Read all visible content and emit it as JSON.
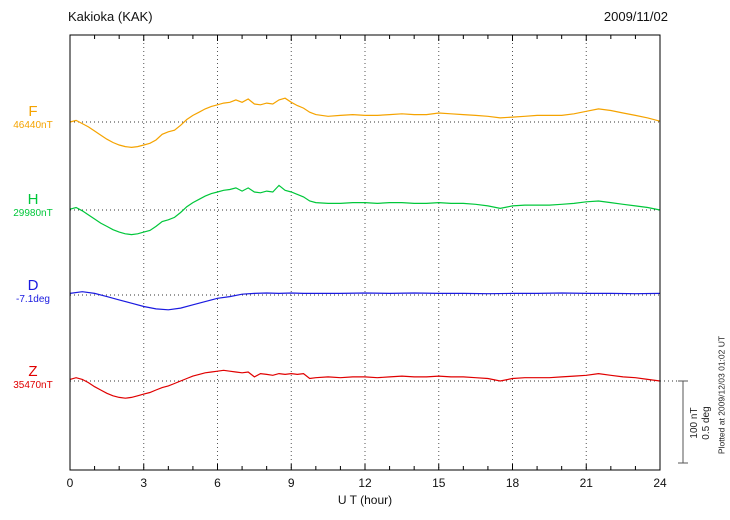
{
  "header": {
    "title": "Kakioka (KAK)",
    "date": "2009/11/02"
  },
  "xaxis": {
    "label": "U T (hour)",
    "ticks": [
      0,
      3,
      6,
      9,
      12,
      15,
      18,
      21,
      24
    ],
    "range": [
      0,
      24
    ]
  },
  "scale_bar": {
    "lines": [
      "100 nT",
      "0.5 deg"
    ],
    "length_nT": 100,
    "length_deg": 0.5
  },
  "footnote": "Plotted at 2009/12/03 01:02 UT",
  "colors": {
    "F": "#f5a300",
    "H": "#00c73a",
    "D": "#1a1ae0",
    "Z": "#e00000",
    "frame": "#000000",
    "grid": "#555555"
  },
  "chart_data": {
    "type": "line",
    "title": "Kakioka (KAK) magnetogram 2009/11/02",
    "xlabel": "U T (hour)",
    "xlim": [
      0,
      24
    ],
    "grid": "dotted vertical every 3 h, dotted horizontal baseline per trace",
    "legend": "left-side trace labels F/H/D/Z with baseline values",
    "series": [
      {
        "name": "F",
        "unit": "nT",
        "base_label": "46440nT",
        "base_value": 46440,
        "color": "#f5a300",
        "points": [
          [
            0,
            0
          ],
          [
            0.25,
            2
          ],
          [
            0.5,
            -2
          ],
          [
            0.75,
            -6
          ],
          [
            1,
            -11
          ],
          [
            1.25,
            -16
          ],
          [
            1.5,
            -21
          ],
          [
            1.75,
            -25
          ],
          [
            2,
            -28
          ],
          [
            2.25,
            -30
          ],
          [
            2.5,
            -31
          ],
          [
            2.75,
            -30
          ],
          [
            3,
            -28
          ],
          [
            3.25,
            -26
          ],
          [
            3.5,
            -22
          ],
          [
            3.75,
            -15
          ],
          [
            4,
            -12
          ],
          [
            4.25,
            -10
          ],
          [
            4.5,
            -4
          ],
          [
            4.75,
            3
          ],
          [
            5,
            8
          ],
          [
            5.25,
            12
          ],
          [
            5.5,
            16
          ],
          [
            5.75,
            19
          ],
          [
            6,
            21
          ],
          [
            6.25,
            23
          ],
          [
            6.5,
            24
          ],
          [
            6.75,
            27
          ],
          [
            7,
            24
          ],
          [
            7.25,
            28
          ],
          [
            7.5,
            22
          ],
          [
            7.75,
            21
          ],
          [
            8,
            23
          ],
          [
            8.25,
            22
          ],
          [
            8.5,
            27
          ],
          [
            8.75,
            29
          ],
          [
            9,
            24
          ],
          [
            9.25,
            20
          ],
          [
            9.5,
            17
          ],
          [
            9.75,
            12
          ],
          [
            10,
            9
          ],
          [
            10.5,
            7
          ],
          [
            11,
            8
          ],
          [
            11.5,
            9
          ],
          [
            12,
            8
          ],
          [
            12.5,
            8
          ],
          [
            13,
            9
          ],
          [
            13.5,
            10
          ],
          [
            14,
            9
          ],
          [
            14.5,
            9
          ],
          [
            15,
            11
          ],
          [
            15.5,
            10
          ],
          [
            16,
            9
          ],
          [
            16.5,
            8
          ],
          [
            17,
            7
          ],
          [
            17.5,
            5
          ],
          [
            18,
            6
          ],
          [
            18.5,
            7
          ],
          [
            19,
            8
          ],
          [
            19.5,
            8
          ],
          [
            20,
            8
          ],
          [
            20.5,
            10
          ],
          [
            21,
            13
          ],
          [
            21.5,
            16
          ],
          [
            22,
            14
          ],
          [
            22.5,
            11
          ],
          [
            23,
            8
          ],
          [
            23.5,
            5
          ],
          [
            24,
            1
          ]
        ]
      },
      {
        "name": "H",
        "unit": "nT",
        "base_label": "29980nT",
        "base_value": 29980,
        "color": "#00c73a",
        "points": [
          [
            0,
            1
          ],
          [
            0.25,
            3
          ],
          [
            0.5,
            -1
          ],
          [
            0.75,
            -6
          ],
          [
            1,
            -11
          ],
          [
            1.25,
            -16
          ],
          [
            1.5,
            -20
          ],
          [
            1.75,
            -24
          ],
          [
            2,
            -27
          ],
          [
            2.25,
            -29
          ],
          [
            2.5,
            -30
          ],
          [
            2.75,
            -29
          ],
          [
            3,
            -27
          ],
          [
            3.25,
            -25
          ],
          [
            3.5,
            -20
          ],
          [
            3.75,
            -14
          ],
          [
            4,
            -12
          ],
          [
            4.25,
            -9
          ],
          [
            4.5,
            -3
          ],
          [
            4.75,
            4
          ],
          [
            5,
            9
          ],
          [
            5.25,
            13
          ],
          [
            5.5,
            17
          ],
          [
            5.75,
            20
          ],
          [
            6,
            22
          ],
          [
            6.25,
            24
          ],
          [
            6.5,
            25
          ],
          [
            6.75,
            27
          ],
          [
            7,
            23
          ],
          [
            7.25,
            27
          ],
          [
            7.5,
            22
          ],
          [
            7.75,
            21
          ],
          [
            8,
            23
          ],
          [
            8.25,
            22
          ],
          [
            8.5,
            30
          ],
          [
            8.75,
            24
          ],
          [
            9,
            22
          ],
          [
            9.25,
            19
          ],
          [
            9.5,
            16
          ],
          [
            9.75,
            11
          ],
          [
            10,
            9
          ],
          [
            10.5,
            8
          ],
          [
            11,
            8
          ],
          [
            11.5,
            9
          ],
          [
            12,
            9
          ],
          [
            12.5,
            8
          ],
          [
            13,
            9
          ],
          [
            13.5,
            9
          ],
          [
            14,
            8
          ],
          [
            14.5,
            8
          ],
          [
            15,
            9
          ],
          [
            15.5,
            8
          ],
          [
            16,
            8
          ],
          [
            16.5,
            7
          ],
          [
            17,
            5
          ],
          [
            17.5,
            2
          ],
          [
            18,
            5
          ],
          [
            18.5,
            6
          ],
          [
            19,
            6
          ],
          [
            19.5,
            6
          ],
          [
            20,
            7
          ],
          [
            20.5,
            8
          ],
          [
            21,
            10
          ],
          [
            21.5,
            11
          ],
          [
            22,
            9
          ],
          [
            22.5,
            7
          ],
          [
            23,
            5
          ],
          [
            23.5,
            3
          ],
          [
            24,
            0
          ]
        ]
      },
      {
        "name": "D",
        "unit": "deg",
        "base_label": "-7.1deg",
        "base_value": -7.1,
        "color": "#1a1ae0",
        "points": [
          [
            0,
            0.01
          ],
          [
            0.5,
            0.02
          ],
          [
            1,
            0.01
          ],
          [
            1.5,
            -0.01
          ],
          [
            2,
            -0.03
          ],
          [
            2.5,
            -0.05
          ],
          [
            3,
            -0.07
          ],
          [
            3.5,
            -0.085
          ],
          [
            4,
            -0.09
          ],
          [
            4.5,
            -0.08
          ],
          [
            5,
            -0.06
          ],
          [
            5.5,
            -0.04
          ],
          [
            6,
            -0.02
          ],
          [
            6.5,
            -0.01
          ],
          [
            7,
            0.005
          ],
          [
            7.5,
            0.01
          ],
          [
            8,
            0.012
          ],
          [
            8.5,
            0.01
          ],
          [
            9,
            0.012
          ],
          [
            9.5,
            0.01
          ],
          [
            10,
            0.01
          ],
          [
            11,
            0.01
          ],
          [
            12,
            0.012
          ],
          [
            13,
            0.01
          ],
          [
            14,
            0.012
          ],
          [
            15,
            0.01
          ],
          [
            16,
            0.01
          ],
          [
            17,
            0.008
          ],
          [
            18,
            0.01
          ],
          [
            19,
            0.01
          ],
          [
            20,
            0.012
          ],
          [
            21,
            0.01
          ],
          [
            22,
            0.01
          ],
          [
            23,
            0.008
          ],
          [
            24,
            0.01
          ]
        ]
      },
      {
        "name": "Z",
        "unit": "nT",
        "base_label": "35470nT",
        "base_value": 35470,
        "color": "#e00000",
        "points": [
          [
            0,
            2
          ],
          [
            0.25,
            4
          ],
          [
            0.5,
            2
          ],
          [
            0.75,
            -2
          ],
          [
            1,
            -7
          ],
          [
            1.25,
            -11
          ],
          [
            1.5,
            -15
          ],
          [
            1.75,
            -18
          ],
          [
            2,
            -20
          ],
          [
            2.25,
            -21
          ],
          [
            2.5,
            -20
          ],
          [
            2.75,
            -18
          ],
          [
            3,
            -16
          ],
          [
            3.25,
            -14
          ],
          [
            3.5,
            -11
          ],
          [
            3.75,
            -8
          ],
          [
            4,
            -6
          ],
          [
            4.25,
            -3
          ],
          [
            4.5,
            0
          ],
          [
            4.75,
            3
          ],
          [
            5,
            6
          ],
          [
            5.25,
            8
          ],
          [
            5.5,
            10
          ],
          [
            5.75,
            11
          ],
          [
            6,
            12
          ],
          [
            6.25,
            13
          ],
          [
            6.5,
            12
          ],
          [
            6.75,
            11
          ],
          [
            7,
            10
          ],
          [
            7.25,
            11
          ],
          [
            7.5,
            5
          ],
          [
            7.75,
            9
          ],
          [
            8,
            8
          ],
          [
            8.25,
            7
          ],
          [
            8.5,
            9
          ],
          [
            8.75,
            8
          ],
          [
            9,
            9
          ],
          [
            9.25,
            8
          ],
          [
            9.5,
            9
          ],
          [
            9.75,
            3
          ],
          [
            10,
            4
          ],
          [
            10.5,
            5
          ],
          [
            11,
            4
          ],
          [
            11.5,
            5
          ],
          [
            12,
            5
          ],
          [
            12.5,
            4
          ],
          [
            13,
            5
          ],
          [
            13.5,
            6
          ],
          [
            14,
            5
          ],
          [
            14.5,
            5
          ],
          [
            15,
            6
          ],
          [
            15.5,
            5
          ],
          [
            16,
            5
          ],
          [
            16.5,
            4
          ],
          [
            17,
            3
          ],
          [
            17.5,
            0
          ],
          [
            18,
            3
          ],
          [
            18.5,
            4
          ],
          [
            19,
            4
          ],
          [
            19.5,
            4
          ],
          [
            20,
            5
          ],
          [
            20.5,
            6
          ],
          [
            21,
            7
          ],
          [
            21.5,
            9
          ],
          [
            22,
            7
          ],
          [
            22.5,
            5
          ],
          [
            23,
            4
          ],
          [
            23.5,
            2
          ],
          [
            24,
            0
          ]
        ]
      }
    ]
  }
}
